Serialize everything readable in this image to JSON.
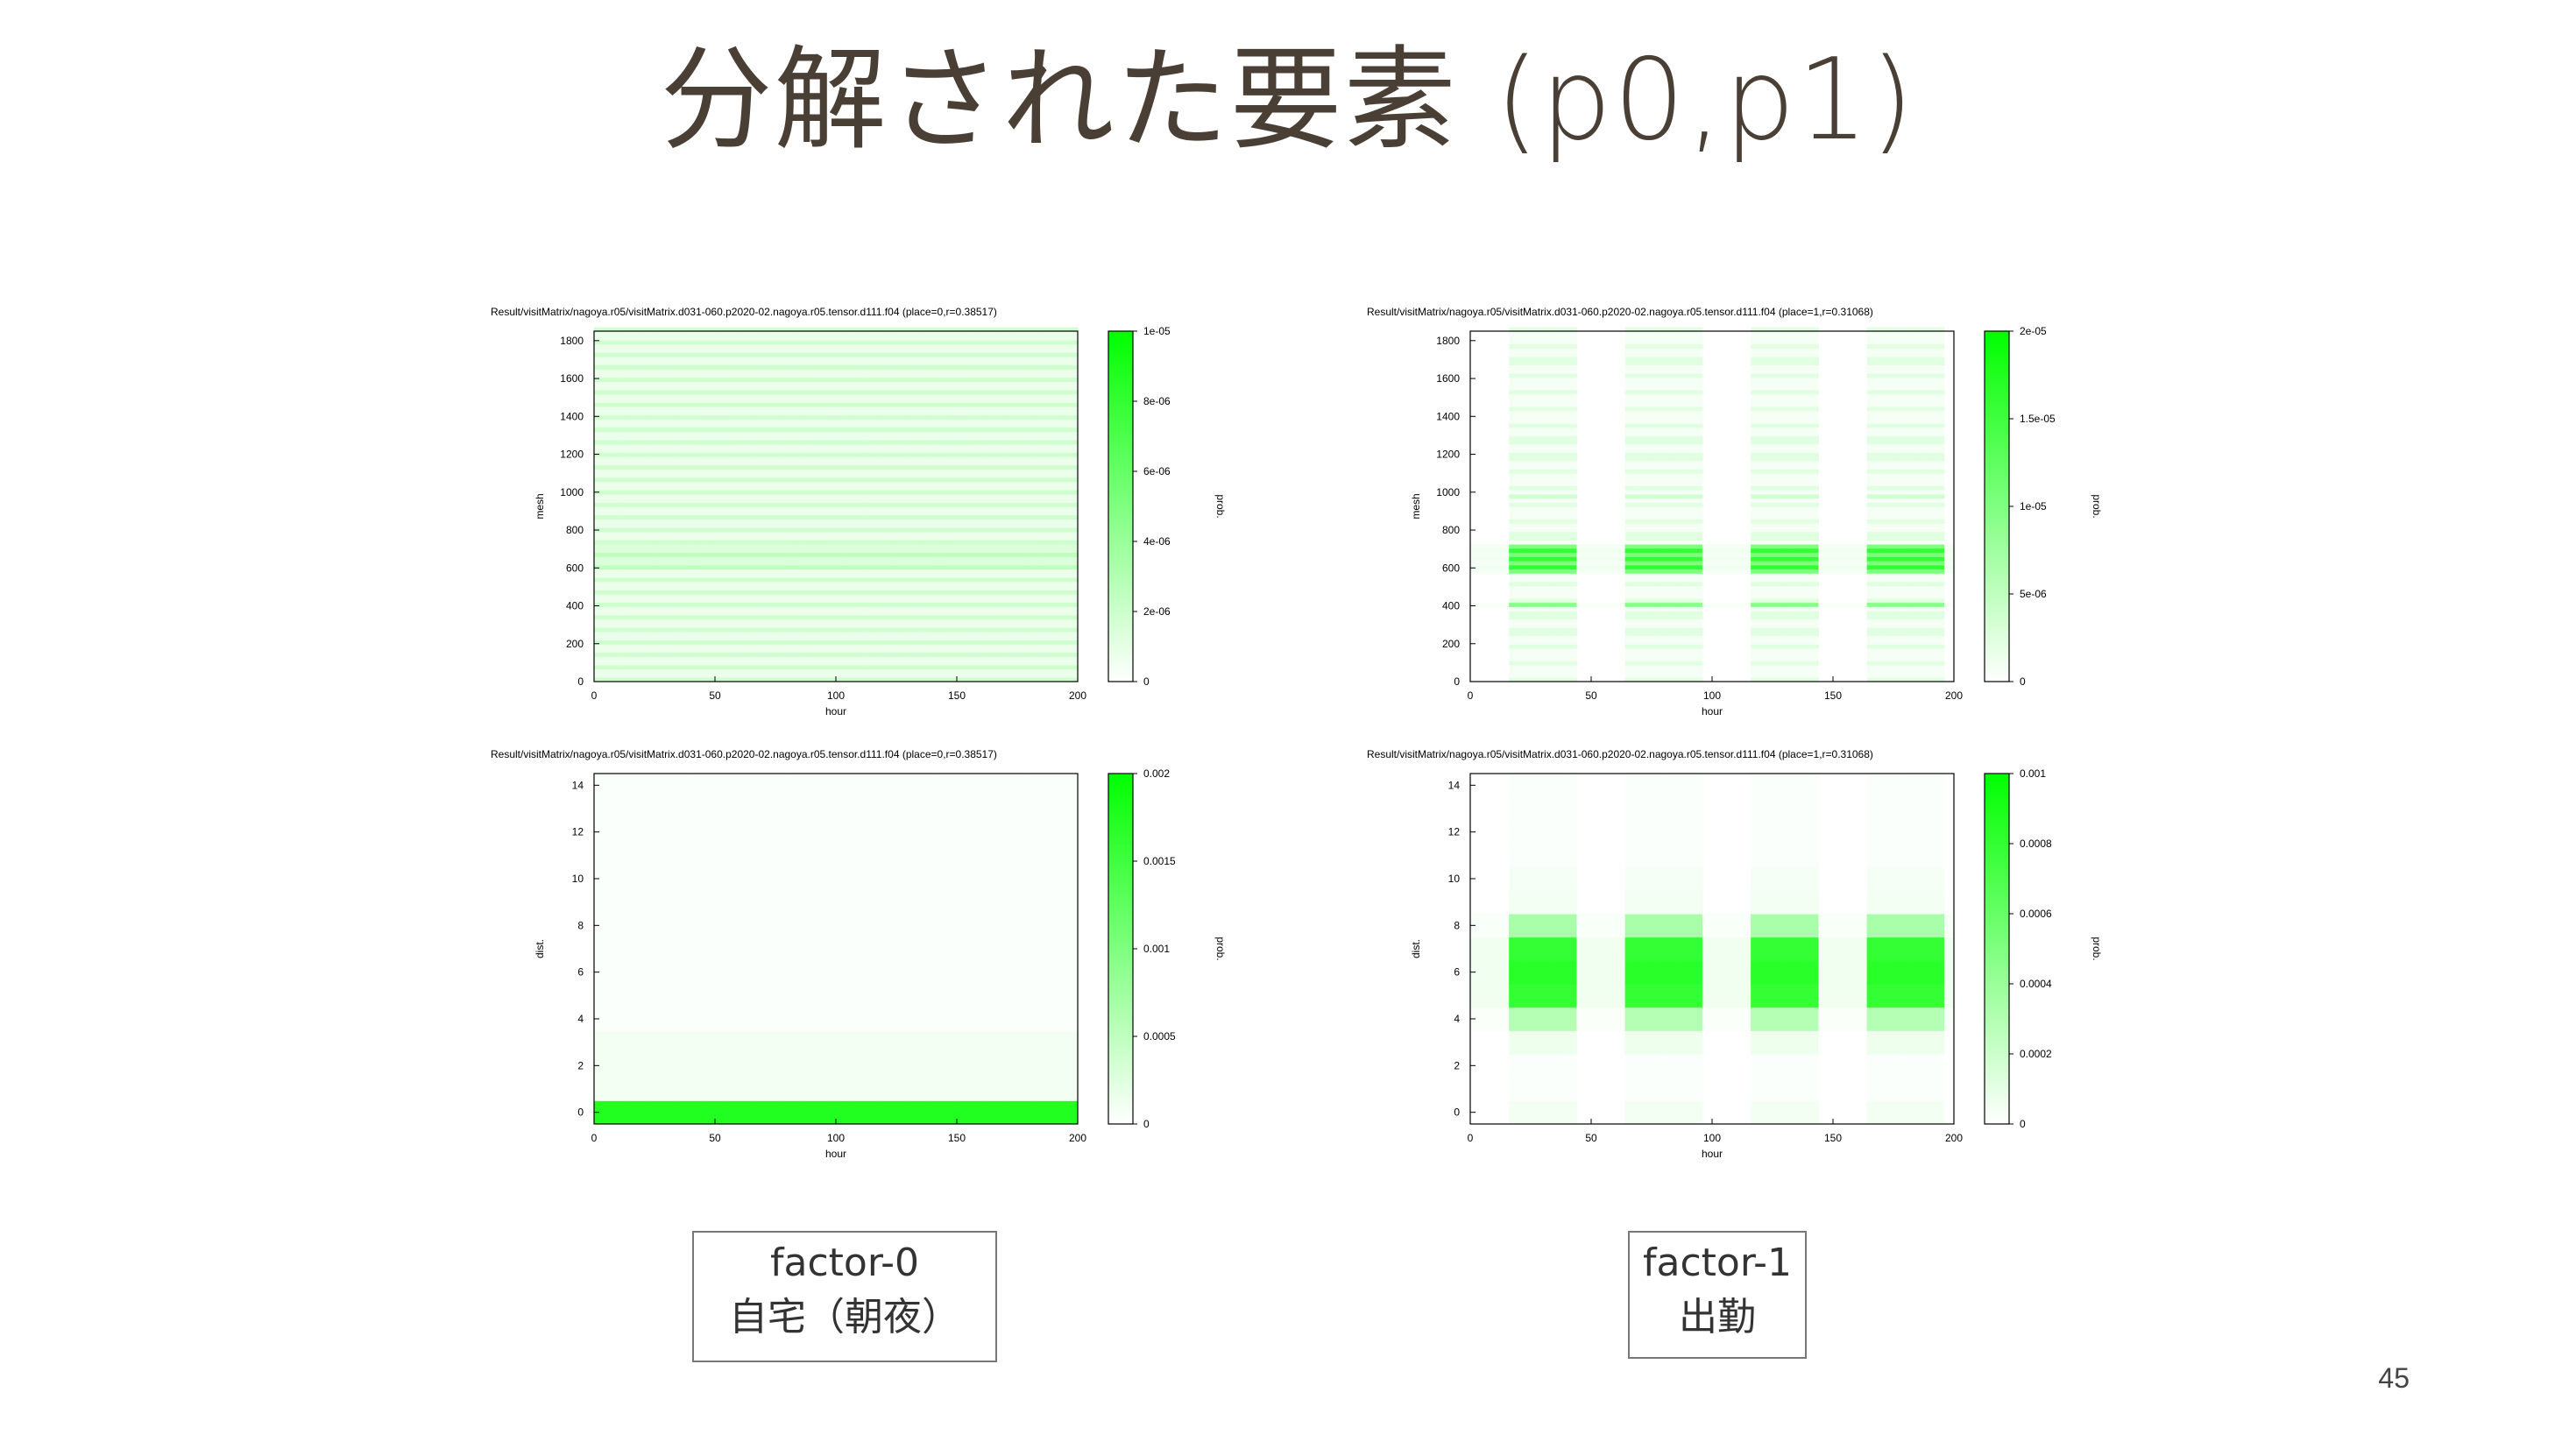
{
  "slide": {
    "title": "分解された要素 (p0,p1)",
    "page_number": "45"
  },
  "labels": [
    {
      "line1": "factor-0",
      "line2": "自宅（朝夜）"
    },
    {
      "line1": "factor-1",
      "line2": "出勤"
    }
  ],
  "chart_data": [
    {
      "type": "heatmap",
      "title": "Result/visitMatrix/nagoya.r05/visitMatrix.d031-060.p2020-02.nagoya.r05.tensor.d111.f04 (place=0,r=0.38517)",
      "xlabel": "hour",
      "ylabel": "mesh",
      "colorbar_label": "prob.",
      "x_ticks": [
        "0",
        "50",
        "100",
        "150",
        "200"
      ],
      "y_ticks": [
        "0",
        "200",
        "400",
        "600",
        "800",
        "1000",
        "1200",
        "1400",
        "1600",
        "1800"
      ],
      "colorbar_ticks": [
        "0",
        "2e-06",
        "4e-06",
        "6e-06",
        "8e-06",
        "1e-05"
      ],
      "xlim": [
        0,
        200
      ],
      "ylim": [
        0,
        1850
      ],
      "color_range": [
        0,
        1e-05
      ],
      "color": "#00ff00",
      "pattern": "uniform faint stripes across all hours; slightly stronger band near mesh 600-700"
    },
    {
      "type": "heatmap",
      "title": "Result/visitMatrix/nagoya.r05/visitMatrix.d031-060.p2020-02.nagoya.r05.tensor.d111.f04 (place=1,r=0.31068)",
      "xlabel": "hour",
      "ylabel": "mesh",
      "colorbar_label": "prob.",
      "x_ticks": [
        "0",
        "50",
        "100",
        "150",
        "200"
      ],
      "y_ticks": [
        "0",
        "200",
        "400",
        "600",
        "800",
        "1000",
        "1200",
        "1400",
        "1600",
        "1800"
      ],
      "colorbar_ticks": [
        "0",
        "5e-06",
        "1e-05",
        "1.5e-05",
        "2e-05"
      ],
      "xlim": [
        0,
        200
      ],
      "ylim": [
        0,
        1850
      ],
      "color_range": [
        0,
        2e-05
      ],
      "color": "#00ff00",
      "pattern": "four daytime blocks (hours ~15-45, 65-95, 115-145, 165-195); strongest at mesh 580-720 and 400"
    },
    {
      "type": "heatmap",
      "title": "Result/visitMatrix/nagoya.r05/visitMatrix.d031-060.p2020-02.nagoya.r05.tensor.d111.f04 (place=0,r=0.38517)",
      "xlabel": "hour",
      "ylabel": "dist.",
      "colorbar_label": "prob.",
      "x_ticks": [
        "0",
        "50",
        "100",
        "150",
        "200"
      ],
      "y_ticks": [
        "0",
        "2",
        "4",
        "6",
        "8",
        "10",
        "12",
        "14"
      ],
      "colorbar_ticks": [
        "0",
        "0.0005",
        "0.001",
        "0.0015",
        "0.002"
      ],
      "xlim": [
        0,
        200
      ],
      "ylim": [
        -0.5,
        14.5
      ],
      "color_range": [
        0,
        0.002
      ],
      "color": "#00ff00",
      "pattern": "strong band at dist 0 across all hours; faint values at dist 1-3"
    },
    {
      "type": "heatmap",
      "title": "Result/visitMatrix/nagoya.r05/visitMatrix.d031-060.p2020-02.nagoya.r05.tensor.d111.f04 (place=1,r=0.31068)",
      "xlabel": "hour",
      "ylabel": "dist.",
      "colorbar_label": "prob.",
      "x_ticks": [
        "0",
        "50",
        "100",
        "150",
        "200"
      ],
      "y_ticks": [
        "0",
        "2",
        "4",
        "6",
        "8",
        "10",
        "12",
        "14"
      ],
      "colorbar_ticks": [
        "0",
        "0.0002",
        "0.0004",
        "0.0006",
        "0.0008",
        "0.001"
      ],
      "xlim": [
        0,
        200
      ],
      "ylim": [
        -0.5,
        14.5
      ],
      "color_range": [
        0,
        0.001
      ],
      "color": "#00ff00",
      "pattern": "four daytime blocks; strongest at dist 5-7, medium at dist 4 and 8"
    }
  ]
}
